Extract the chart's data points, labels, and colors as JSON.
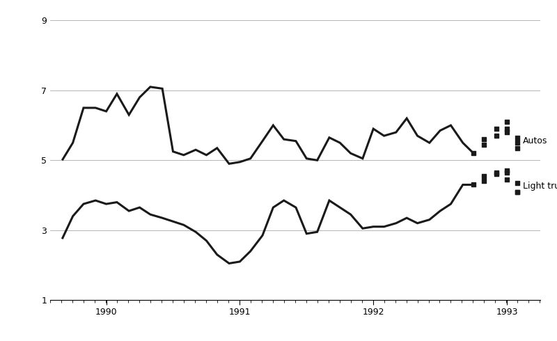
{
  "ylim": [
    1,
    9
  ],
  "xlim": [
    1989.58,
    1993.25
  ],
  "yticks": [
    1,
    3,
    5,
    7,
    9
  ],
  "xticks": [
    1990,
    1991,
    1992,
    1993
  ],
  "background_color": "#ffffff",
  "autos_solid_x": [
    1989.67,
    1989.75,
    1989.83,
    1989.92,
    1990.0,
    1990.08,
    1990.17,
    1990.25,
    1990.33,
    1990.42,
    1990.5,
    1990.58,
    1990.67,
    1990.75,
    1990.83,
    1990.92,
    1991.0,
    1991.08,
    1991.17,
    1991.25,
    1991.33,
    1991.42,
    1991.5,
    1991.58,
    1991.67,
    1991.75,
    1991.83,
    1991.92,
    1992.0,
    1992.08,
    1992.17,
    1992.25,
    1992.33,
    1992.42,
    1992.5,
    1992.58,
    1992.67,
    1992.75
  ],
  "autos_solid_y": [
    5.0,
    5.5,
    6.5,
    6.5,
    6.4,
    6.9,
    6.3,
    6.8,
    7.1,
    7.05,
    5.25,
    5.15,
    5.3,
    5.15,
    5.35,
    4.9,
    4.95,
    5.05,
    5.55,
    6.0,
    5.6,
    5.55,
    5.05,
    5.0,
    5.65,
    5.5,
    5.2,
    5.05,
    5.9,
    5.7,
    5.8,
    6.2,
    5.7,
    5.5,
    5.85,
    6.0,
    5.5,
    5.2
  ],
  "autos_dot_x": [
    1992.83,
    1992.92,
    1993.0,
    1993.0,
    1993.08,
    1992.75,
    1992.83,
    1992.92,
    1993.0,
    1993.08,
    1993.08
  ],
  "autos_dot_y": [
    5.6,
    5.9,
    6.1,
    5.8,
    5.5,
    5.2,
    5.45,
    5.7,
    5.9,
    5.65,
    5.35
  ],
  "trucks_solid_x": [
    1989.67,
    1989.75,
    1989.83,
    1989.92,
    1990.0,
    1990.08,
    1990.17,
    1990.25,
    1990.33,
    1990.42,
    1990.5,
    1990.58,
    1990.67,
    1990.75,
    1990.83,
    1990.92,
    1991.0,
    1991.08,
    1991.17,
    1991.25,
    1991.33,
    1991.42,
    1991.5,
    1991.58,
    1991.67,
    1991.75,
    1991.83,
    1991.92,
    1992.0,
    1992.08,
    1992.17,
    1992.25,
    1992.33,
    1992.42,
    1992.5,
    1992.58,
    1992.67,
    1992.75
  ],
  "trucks_solid_y": [
    2.75,
    3.4,
    3.75,
    3.85,
    3.75,
    3.8,
    3.55,
    3.65,
    3.45,
    3.35,
    3.25,
    3.15,
    2.95,
    2.7,
    2.3,
    2.05,
    2.1,
    2.4,
    2.85,
    3.65,
    3.85,
    3.65,
    2.9,
    2.95,
    3.85,
    3.65,
    3.45,
    3.05,
    3.1,
    3.1,
    3.2,
    3.35,
    3.2,
    3.3,
    3.55,
    3.75,
    4.3,
    4.3
  ],
  "trucks_dot_x": [
    1992.83,
    1992.92,
    1993.0,
    1993.0,
    1993.08,
    1992.75,
    1992.83,
    1992.92,
    1993.0,
    1993.08,
    1993.08
  ],
  "trucks_dot_y": [
    4.55,
    4.65,
    4.7,
    4.45,
    4.1,
    4.3,
    4.4,
    4.6,
    4.65,
    4.35,
    4.1
  ],
  "line_color": "#1a1a1a",
  "dot_color": "#1a1a1a",
  "label_autos": "Autos",
  "label_trucks": "Light trucks",
  "label_fontsize": 9,
  "tick_fontsize": 9,
  "grid_color": "#aaaaaa",
  "grid_linewidth": 0.6
}
